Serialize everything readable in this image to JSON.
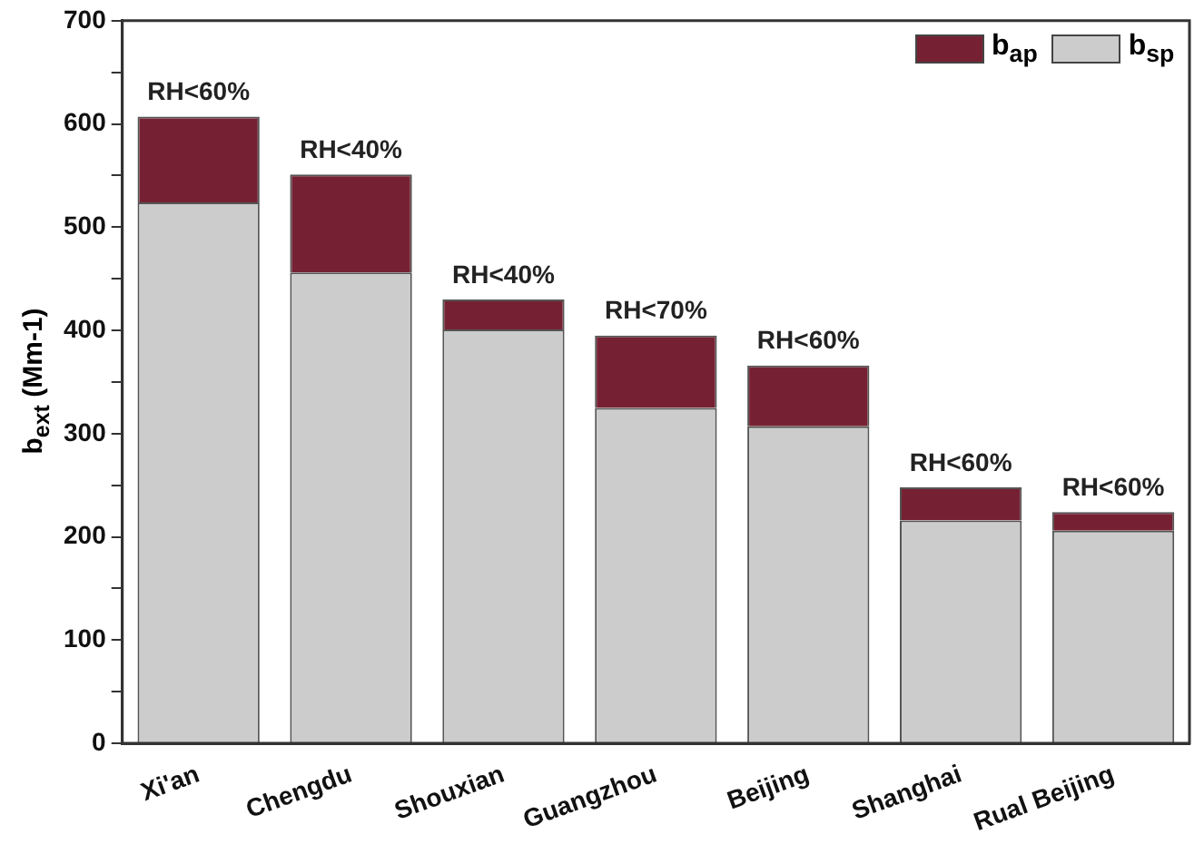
{
  "chart_data": {
    "type": "bar",
    "stacked": true,
    "ylabel": "b$_{ext}$ (Mm-1)",
    "categories": [
      "Xi'an",
      "Chengdu",
      "Shouxian",
      "Guangzhou",
      "Beijing",
      "Shanghai",
      "Rual Beijing"
    ],
    "series": [
      {
        "name": "b$_{sp}$",
        "color": "#cccccc",
        "values": [
          524,
          456,
          401,
          325,
          307,
          216,
          206
        ]
      },
      {
        "name": "b$_{ap}$",
        "color": "#762133",
        "values": [
          83,
          95,
          29,
          70,
          59,
          32,
          18
        ]
      }
    ],
    "ylim": [
      0,
      700
    ],
    "yticks": [
      0,
      {
        "value": 50,
        "label": null
      },
      100,
      {
        "value": 150,
        "label": null
      },
      200,
      {
        "value": 250,
        "label": null
      },
      300,
      {
        "value": 350,
        "label": null
      },
      400,
      {
        "value": 450,
        "label": null
      },
      500,
      {
        "value": 550,
        "label": null
      },
      600,
      {
        "value": 650,
        "label": null
      },
      700
    ],
    "grid": false,
    "legend": "top right",
    "annotations": [
      {
        "text": "RH<60%",
        "x": "Xi'an",
        "y": 607
      },
      {
        "text": "RH<40%",
        "x": "Chengdu",
        "y": 551
      },
      {
        "text": "RH<40%",
        "x": "Shouxian",
        "y": 430
      },
      {
        "text": "RH<70%",
        "x": "Guangzhou",
        "y": 395
      },
      {
        "text": "RH<60%",
        "x": "Beijing",
        "y": 366
      },
      {
        "text": "RH<60%",
        "x": "Shanghai",
        "y": 248
      },
      {
        "text": "RH<60%",
        "x": "Rual Beijing",
        "y": 224
      }
    ]
  }
}
